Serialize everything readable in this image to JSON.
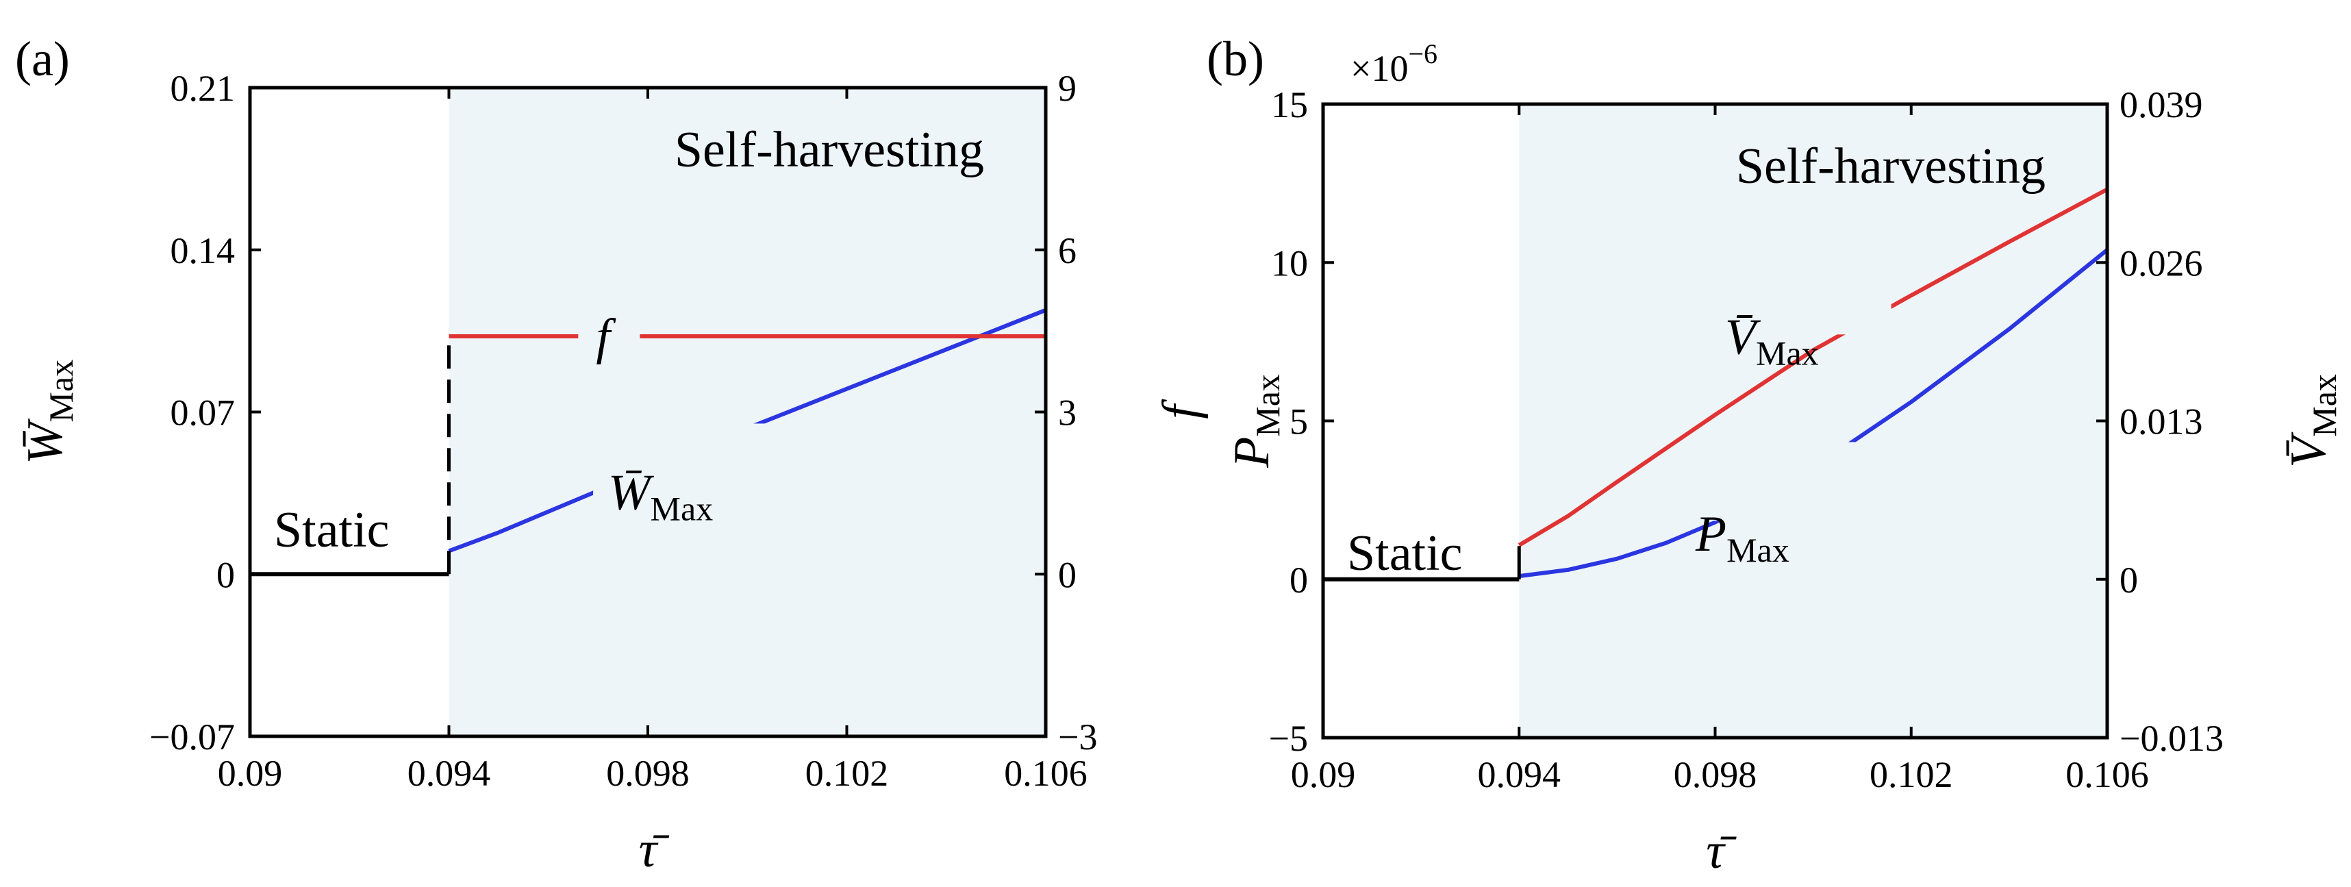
{
  "chart_data": [
    {
      "panel": "(a)",
      "type": "line",
      "xlabel": "τ̄",
      "ylabel_left": "W̄",
      "ylabel_left_sub": "Max",
      "ylabel_right": "f",
      "xlim": [
        0.09,
        0.106
      ],
      "ylim_left": [
        -0.07,
        0.21
      ],
      "ylim_right": [
        -3,
        9
      ],
      "xticks": [
        "0.09",
        "0.094",
        "0.098",
        "0.102",
        "0.106"
      ],
      "yticks_left": [
        "−0.07",
        "0",
        "0.07",
        "0.14",
        "0.21"
      ],
      "yticks_right": [
        "−3",
        "0",
        "3",
        "6",
        "9"
      ],
      "regions": {
        "static_label": "Static",
        "harvest_label": "Self-harvesting",
        "boundary_x": 0.094,
        "harvest_color": "#eef5f9"
      },
      "series": [
        {
          "name": "W̄",
          "name_sub": "Max",
          "axis": "left",
          "color": "#2b35e0",
          "x": [
            0.09,
            0.094
          ],
          "y": [
            0,
            0
          ],
          "segment": "static"
        },
        {
          "name": "W̄",
          "name_sub": "Max",
          "axis": "left",
          "color": "#2b35e0",
          "x": [
            0.094,
            0.095,
            0.096,
            0.098,
            0.1,
            0.102,
            0.104,
            0.106
          ],
          "y": [
            0.01,
            0.018,
            0.027,
            0.045,
            0.063,
            0.08,
            0.097,
            0.114
          ],
          "segment": "harvest"
        },
        {
          "name": "f",
          "axis": "right",
          "color": "#e03333",
          "x": [
            0.094,
            0.106
          ],
          "y": [
            4.4,
            4.4
          ]
        }
      ],
      "jump_dashed": {
        "x": 0.094,
        "y_from": 0,
        "y_to": 0.1
      }
    },
    {
      "panel": "(b)",
      "type": "line",
      "xlabel": "τ̄",
      "ylabel_left": "P",
      "ylabel_left_sub": "Max",
      "ylabel_right": "V̄",
      "ylabel_right_sub": "Max",
      "scale_note": "×10",
      "scale_exp": "−6",
      "xlim": [
        0.09,
        0.106
      ],
      "ylim_left": [
        -5,
        15
      ],
      "ylim_right": [
        -0.013,
        0.039
      ],
      "xticks": [
        "0.09",
        "0.094",
        "0.098",
        "0.102",
        "0.106"
      ],
      "yticks_left": [
        "−5",
        "0",
        "5",
        "10",
        "15"
      ],
      "yticks_right": [
        "−0.013",
        "0",
        "0.013",
        "0.026",
        "0.039"
      ],
      "regions": {
        "static_label": "Static",
        "harvest_label": "Self-harvesting",
        "boundary_x": 0.094,
        "harvest_color": "#eef5f9"
      },
      "series": [
        {
          "name": "P",
          "name_sub": "Max",
          "axis": "left",
          "color": "#2b35e0",
          "x": [
            0.09,
            0.094
          ],
          "y": [
            0,
            0
          ],
          "segment": "static"
        },
        {
          "name": "P",
          "name_sub": "Max",
          "axis": "left",
          "color": "#2b35e0",
          "x": [
            0.094,
            0.095,
            0.096,
            0.097,
            0.098,
            0.1,
            0.102,
            0.104,
            0.106
          ],
          "y": [
            0.1,
            0.3,
            0.65,
            1.15,
            1.8,
            3.5,
            5.6,
            7.9,
            10.4
          ],
          "segment": "harvest"
        },
        {
          "name": "V̄",
          "name_sub": "Max",
          "axis": "right",
          "color": "#e03333",
          "x": [
            0.094,
            0.095,
            0.096,
            0.098,
            0.1,
            0.102,
            0.104,
            0.106
          ],
          "y": [
            0.0028,
            0.0052,
            0.008,
            0.0135,
            0.0188,
            0.0233,
            0.0277,
            0.032
          ]
        }
      ],
      "jump_solid": {
        "x": 0.094,
        "y_from": 0,
        "y_to": 1.05
      }
    }
  ]
}
